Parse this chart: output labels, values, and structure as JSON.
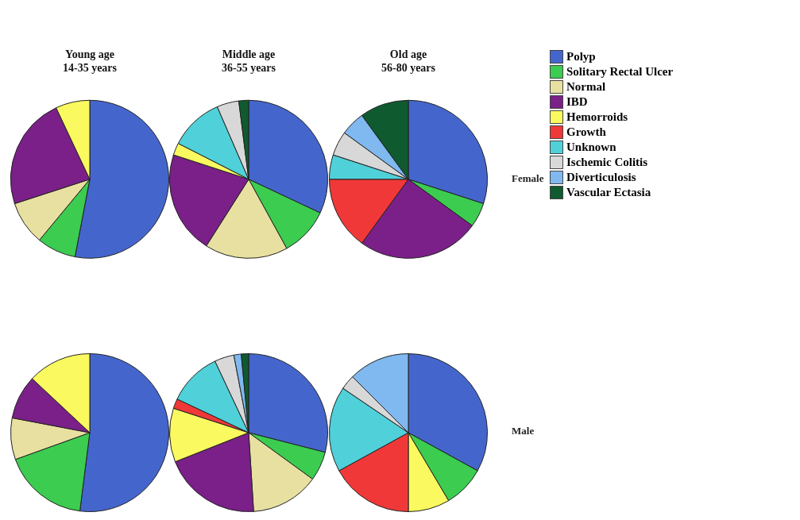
{
  "chart_data": [
    {
      "type": "pie",
      "title": "Young age\n14-35 years",
      "categories": [
        "Polyp",
        "Solitary Rectal Ulcer",
        "Normal",
        "IBD",
        "Hemorroids",
        "Growth",
        "Unknown",
        "Ischemic Colitis",
        "Diverticulosis",
        "Vascular Ectasia"
      ],
      "values": [
        53,
        8,
        9,
        23,
        7,
        null,
        null,
        null,
        null,
        null
      ],
      "colors": [
        "#4466cc",
        "#3ccc50",
        "#e8e0a0",
        "#7a2088",
        "#fafa60",
        "#f03838",
        "#50d0d8",
        "#d8d8d8",
        "#80b8f0",
        "#105a30"
      ],
      "legend": "right"
    },
    {
      "type": "pie",
      "title": "Middle age\n36-55 years",
      "categories": [
        null,
        null,
        null,
        null,
        null,
        null,
        null,
        null,
        null,
        null
      ],
      "values": [
        32,
        10,
        17,
        21,
        2.5,
        null,
        11,
        4.5,
        null,
        2
      ],
      "colors": [
        "#4466cc",
        "#3ccc50",
        "#e8e0a0",
        "#7a2088",
        "#fafa60",
        "#f03838",
        "#50d0d8",
        "#d8d8d8",
        "#80b8f0",
        "#105a30"
      ]
    },
    {
      "type": "pie",
      "title": "Old age\n56-80 years",
      "categories": [
        null,
        null,
        null,
        null,
        null,
        null,
        null,
        null,
        null,
        null
      ],
      "values": [
        30,
        5,
        null,
        25,
        null,
        15,
        5,
        5,
        5,
        10
      ],
      "colors": [
        "#4466cc",
        "#3ccc50",
        "#e8e0a0",
        "#7a2088",
        "#fafa60",
        "#f03838",
        "#50d0d8",
        "#d8d8d8",
        "#80b8f0",
        "#105a30"
      ],
      "annotations": [
        "Female"
      ]
    },
    {
      "type": "pie",
      "categories": [
        null,
        null,
        null,
        null,
        null,
        null,
        null,
        null,
        null,
        null
      ],
      "values": [
        52,
        17.5,
        8.5,
        9,
        13,
        null,
        null,
        null,
        null,
        null
      ],
      "colors": [
        "#4466cc",
        "#3ccc50",
        "#e8e0a0",
        "#7a2088",
        "#fafa60",
        "#f03838",
        "#50d0d8",
        "#d8d8d8",
        "#80b8f0",
        "#105a30"
      ]
    },
    {
      "type": "pie",
      "categories": [
        null,
        null,
        null,
        null,
        null,
        null,
        null,
        null,
        null,
        null
      ],
      "values": [
        29,
        6,
        14,
        20,
        11,
        2,
        11,
        4,
        1.5,
        1.5
      ],
      "colors": [
        "#4466cc",
        "#3ccc50",
        "#e8e0a0",
        "#7a2088",
        "#fafa60",
        "#f03838",
        "#50d0d8",
        "#d8d8d8",
        "#80b8f0",
        "#105a30"
      ]
    },
    {
      "type": "pie",
      "categories": [
        null,
        null,
        null,
        null,
        null,
        null,
        null,
        null,
        null,
        null
      ],
      "values": [
        33,
        8.5,
        null,
        null,
        8.5,
        17,
        17.5,
        3,
        12.5,
        null
      ],
      "colors": [
        "#4466cc",
        "#3ccc50",
        "#e8e0a0",
        "#7a2088",
        "#fafa60",
        "#f03838",
        "#50d0d8",
        "#d8d8d8",
        "#80b8f0",
        "#105a30"
      ],
      "annotations": [
        "Male"
      ]
    }
  ]
}
